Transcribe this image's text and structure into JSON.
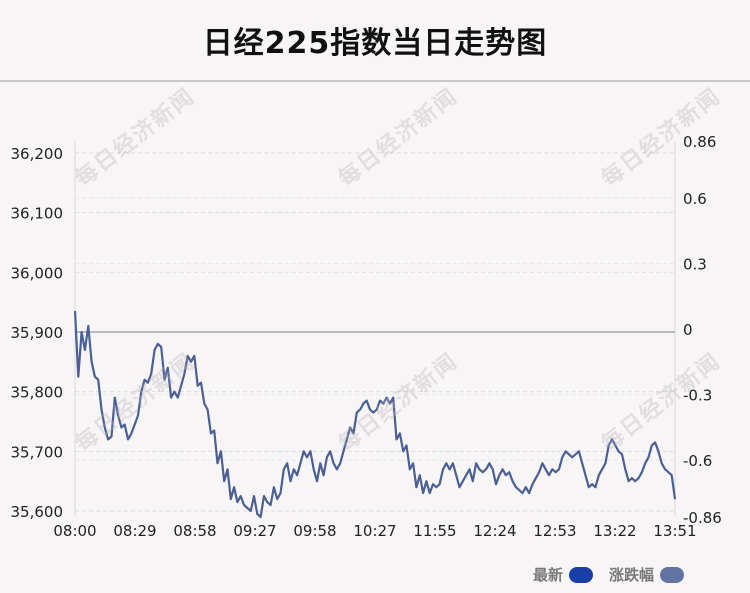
{
  "title": "日经225指数当日走势图",
  "watermark": "每日经济新闻",
  "legend": {
    "latest_label": "最新",
    "change_label": "涨跌幅",
    "latest_color": "#1a3fa8",
    "change_color": "#5f74a3"
  },
  "chart_data": {
    "type": "line",
    "title": "日经225指数当日走势图",
    "x_ticks": [
      "08:00",
      "08:29",
      "08:58",
      "09:27",
      "09:58",
      "10:27",
      "11:55",
      "12:24",
      "12:53",
      "13:22",
      "13:51"
    ],
    "y_left_ticks": [
      35600,
      35700,
      35800,
      35900,
      36000,
      36100,
      36200
    ],
    "y_left_tick_labels": [
      "35,600",
      "35,700",
      "35,800",
      "35,900",
      "36,000",
      "36,100",
      "36,200"
    ],
    "y_right_ticks": [
      -0.86,
      -0.6,
      -0.3,
      0,
      0.3,
      0.6,
      0.86
    ],
    "y_right_tick_labels": [
      "-0.86",
      "-0.6",
      "-0.3",
      "0",
      "0.3",
      "0.6",
      "0.86"
    ],
    "ylim_left": [
      35590,
      36220
    ],
    "ylim_right": [
      -0.86,
      0.86
    ],
    "reference_value": 35900,
    "line_color": "#4a5f94",
    "series": [
      {
        "values": [
          35935,
          35825,
          35900,
          35870,
          35910,
          35850,
          35825,
          35820,
          35770,
          35740,
          35720,
          35725,
          35790,
          35760,
          35740,
          35745,
          35720,
          35730,
          35745,
          35760,
          35800,
          35820,
          35815,
          35830,
          35870,
          35880,
          35875,
          35820,
          35840,
          35790,
          35800,
          35790,
          35810,
          35830,
          35860,
          35850,
          35860,
          35810,
          35815,
          35780,
          35770,
          35730,
          35735,
          35680,
          35700,
          35650,
          35670,
          35620,
          35640,
          35615,
          35625,
          35610,
          35605,
          35600,
          35625,
          35595,
          35590,
          35625,
          35615,
          35610,
          35640,
          35620,
          35630,
          35670,
          35680,
          35650,
          35670,
          35660,
          35680,
          35700,
          35690,
          35700,
          35670,
          35650,
          35680,
          35660,
          35690,
          35700,
          35680,
          35670,
          35680,
          35700,
          35720,
          35740,
          35730,
          35765,
          35770,
          35780,
          35785,
          35770,
          35765,
          35770,
          35785,
          35780,
          35790,
          35780,
          35790,
          35720,
          35730,
          35700,
          35710,
          35670,
          35680,
          35640,
          35660,
          35630,
          35650,
          35630,
          35645,
          35640,
          35645,
          35670,
          35680,
          35670,
          35680,
          35660,
          35640,
          35650,
          35660,
          35670,
          35650,
          35680,
          35670,
          35665,
          35670,
          35680,
          35670,
          35645,
          35660,
          35670,
          35660,
          35665,
          35650,
          35640,
          35635,
          35630,
          35640,
          35630,
          35645,
          35655,
          35665,
          35680,
          35670,
          35660,
          35670,
          35665,
          35670,
          35690,
          35700,
          35695,
          35690,
          35695,
          35700,
          35680,
          35660,
          35640,
          35645,
          35640,
          35660,
          35670,
          35680,
          35710,
          35720,
          35710,
          35700,
          35695,
          35670,
          35650,
          35655,
          35650,
          35655,
          35665,
          35680,
          35690,
          35710,
          35715,
          35700,
          35680,
          35670,
          35665,
          35660,
          35620
        ]
      }
    ],
    "legend_position": "bottom-right",
    "grid": true
  }
}
